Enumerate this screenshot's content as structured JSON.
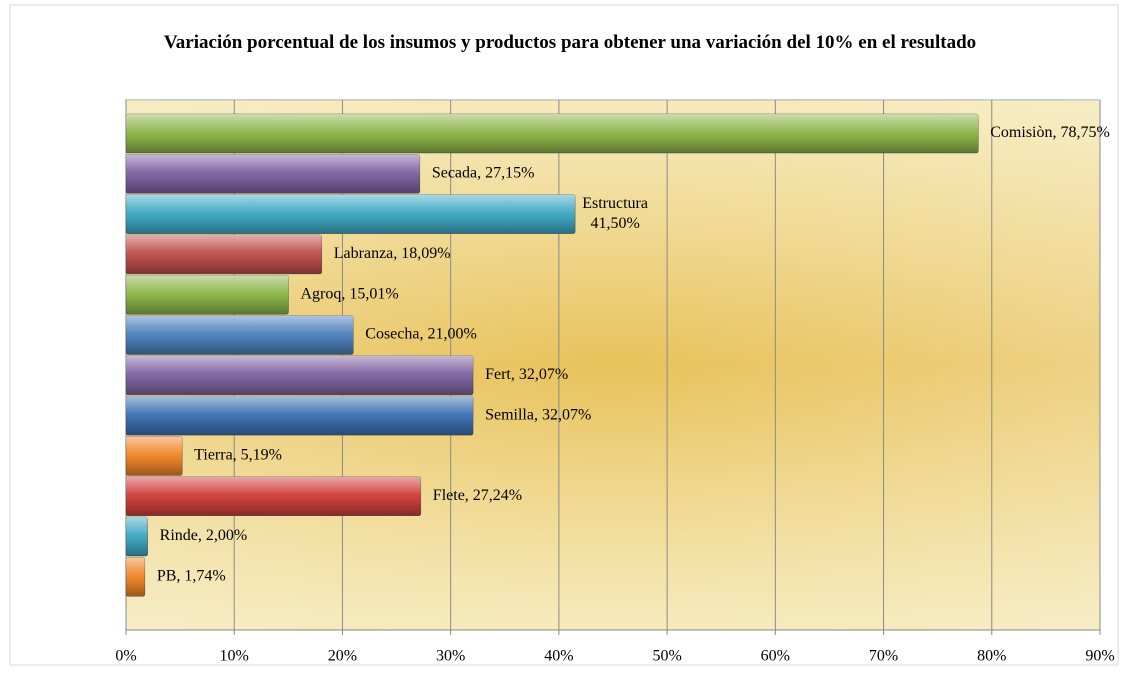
{
  "chart_data": {
    "type": "hbar",
    "title": "Variación porcentual de los insumos y productos para obtener una variación del 10% en el resultado",
    "values": [
      78.75,
      27.15,
      41.5,
      18.09,
      15.01,
      21.0,
      32.07,
      32.07,
      5.19,
      27.24,
      2.0,
      1.74
    ],
    "value_labels": [
      "Comisiòn, 78,75%",
      "Secada, 27,15%",
      "Estructura\n41,50%",
      "Labranza, 18,09%",
      "Agroq, 15,01%",
      "Cosecha, 21,00%",
      "Fert, 32,07%",
      "Semilla, 32,07%",
      "Tierra, 5,19%",
      "Flete, 27,24%",
      "Rinde, 2,00%",
      "PB, 1,74%"
    ],
    "colors": [
      "#8db54a",
      "#8064a2",
      "#3fa9c4",
      "#c0504d",
      "#8db54a",
      "#4f81bd",
      "#8064a2",
      "#3f71b3",
      "#f0862a",
      "#d0403d",
      "#3fa9c4",
      "#f0862a"
    ],
    "xlim": [
      0,
      90
    ],
    "xticks": [
      {
        "value": 0,
        "label": "0%"
      },
      {
        "value": 10,
        "label": "10%"
      },
      {
        "value": 20,
        "label": "20%"
      },
      {
        "value": 30,
        "label": "30%"
      },
      {
        "value": 40,
        "label": "40%"
      },
      {
        "value": 50,
        "label": "50%"
      },
      {
        "value": 60,
        "label": "60%"
      },
      {
        "value": 70,
        "label": "70%"
      },
      {
        "value": 80,
        "label": "80%"
      },
      {
        "value": 90,
        "label": "90%"
      }
    ],
    "grid": true
  }
}
